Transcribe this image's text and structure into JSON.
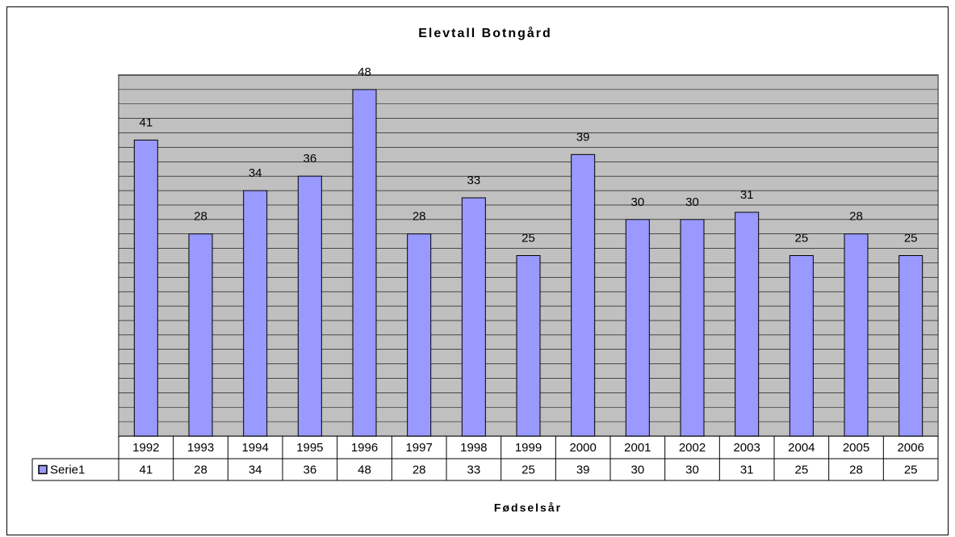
{
  "chart_data": {
    "type": "bar",
    "title": "Elevtall Botngård",
    "x_label": "Fødselsår",
    "categories": [
      "1992",
      "1993",
      "1994",
      "1995",
      "1996",
      "1997",
      "1998",
      "1999",
      "2000",
      "2001",
      "2002",
      "2003",
      "2004",
      "2005",
      "2006"
    ],
    "series": [
      {
        "name": "Serie1",
        "color": "#9999ff",
        "values": [
          41,
          28,
          34,
          36,
          48,
          28,
          33,
          25,
          39,
          30,
          30,
          31,
          25,
          28,
          25
        ]
      }
    ],
    "ylim": [
      0,
      50
    ],
    "yticks": [
      0,
      2,
      4,
      6,
      8,
      10,
      12,
      14,
      16,
      18,
      20,
      22,
      24,
      26,
      28,
      30,
      32,
      34,
      36,
      38,
      40,
      42,
      44,
      46,
      48,
      50
    ],
    "grid": true,
    "data_table": true
  }
}
